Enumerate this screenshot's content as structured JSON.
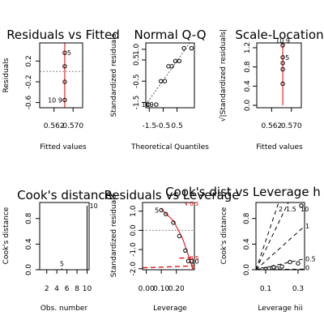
{
  "chart_data": [
    {
      "id": "p1",
      "type": "scatter",
      "title": "Residuals vs Fitted",
      "xlabel": "Fitted values",
      "ylabel": "Residuals",
      "xlim": [
        0.556,
        0.574
      ],
      "ylim": [
        -0.7,
        0.55
      ],
      "xticks": [
        0.562,
        0.57
      ],
      "xticklabels": [
        "0.562",
        "0.570"
      ],
      "yticks": [
        -0.6,
        -0.2,
        0.2
      ],
      "yticklabels": [
        "-0.6",
        "-0.2",
        "0.2"
      ],
      "points": [
        {
          "x": 0.5665,
          "y": 0.36
        },
        {
          "x": 0.5665,
          "y": 0.1
        },
        {
          "x": 0.5665,
          "y": -0.2
        },
        {
          "x": 0.5665,
          "y": -0.55
        }
      ],
      "smooth": [
        {
          "x": 0.5665,
          "y": 0.55
        },
        {
          "x": 0.5665,
          "y": -0.7
        }
      ],
      "reference_y": 0,
      "annotations": [
        {
          "x": 0.5665,
          "y": 0.36,
          "text": "5",
          "pos": "right"
        },
        {
          "x": 0.5665,
          "y": -0.55,
          "text": "10 9",
          "pos": "left"
        }
      ]
    },
    {
      "id": "p2",
      "type": "scatter",
      "title": "Normal Q-Q",
      "xlabel": "Theoretical Quantiles",
      "ylabel": "Standardized residuals",
      "xlim": [
        -1.75,
        1.75
      ],
      "ylim": [
        -1.75,
        1.3
      ],
      "xticks": [
        -1.5,
        -0.5,
        0.5
      ],
      "xticklabels": [
        "-1.5",
        "-0.5",
        "0.5"
      ],
      "yticks": [
        -1.5,
        -0.5,
        0.5,
        1.0
      ],
      "yticklabels": [
        "-1.5",
        "-0.5",
        "0.5",
        "1.0"
      ],
      "points": [
        {
          "x": -1.54,
          "y": -1.6
        },
        {
          "x": -1.0,
          "y": -1.6
        },
        {
          "x": -0.66,
          "y": -0.5
        },
        {
          "x": -0.38,
          "y": -0.5
        },
        {
          "x": -0.12,
          "y": 0.2
        },
        {
          "x": 0.12,
          "y": 0.2
        },
        {
          "x": 0.38,
          "y": 0.45
        },
        {
          "x": 0.66,
          "y": 0.45
        },
        {
          "x": 1.0,
          "y": 1.05
        },
        {
          "x": 1.54,
          "y": 1.05
        }
      ],
      "qqline": [
        {
          "x": -1.75,
          "y": -1.6
        },
        {
          "x": 1.75,
          "y": 1.6
        }
      ],
      "annotations": [
        {
          "x": -1.0,
          "y": -1.6,
          "text": "109",
          "pos": "left"
        }
      ]
    },
    {
      "id": "p3",
      "type": "scatter",
      "title": "Scale-Location",
      "xlabel": "Fitted values",
      "ylabel": "√|Standardized residuals|",
      "xlim": [
        0.556,
        0.574
      ],
      "ylim": [
        -0.05,
        1.3
      ],
      "xticks": [
        0.562,
        0.57
      ],
      "xticklabels": [
        "0.562",
        "0.570"
      ],
      "yticks": [
        0.0,
        0.4,
        0.8,
        1.2
      ],
      "yticklabels": [
        "0.0",
        "0.4",
        "0.8",
        "1.2"
      ],
      "points": [
        {
          "x": 0.5665,
          "y": 1.25
        },
        {
          "x": 0.5665,
          "y": 1.0
        },
        {
          "x": 0.5665,
          "y": 0.88
        },
        {
          "x": 0.5665,
          "y": 0.75
        },
        {
          "x": 0.5665,
          "y": 0.45
        }
      ],
      "smooth": [
        {
          "x": 0.5665,
          "y": 1.3
        },
        {
          "x": 0.5665,
          "y": 0.0
        }
      ],
      "annotations": [
        {
          "x": 0.5665,
          "y": 1.25,
          "text": "10 9",
          "pos": "top"
        },
        {
          "x": 0.5665,
          "y": 1.0,
          "text": "5",
          "pos": "right"
        }
      ]
    },
    {
      "id": "p4",
      "type": "bar",
      "title": "Cook's distance",
      "xlabel": "Obs. number",
      "ylabel": "Cook's distance",
      "xlim": [
        0.6,
        10.4
      ],
      "ylim": [
        0,
        1.05
      ],
      "xticks": [
        2,
        4,
        6,
        8,
        10
      ],
      "xticklabels": [
        "2",
        "4",
        "6",
        "8",
        "10"
      ],
      "yticks": [
        0.0,
        0.4,
        0.8
      ],
      "yticklabels": [
        "0.0",
        "0.4",
        "0.8"
      ],
      "categories": [
        1,
        2,
        3,
        4,
        5,
        6,
        7,
        8,
        9,
        10
      ],
      "values": [
        0.003,
        0.003,
        0.004,
        0.006,
        0.02,
        0.006,
        0.004,
        0.004,
        0.006,
        1.0
      ],
      "annotations": [
        {
          "x": 5,
          "y": 0.02,
          "text": "5",
          "pos": "top"
        },
        {
          "x": 10,
          "y": 1.0,
          "text": "10",
          "pos": "right"
        }
      ]
    },
    {
      "id": "p5",
      "type": "scatter",
      "title": "Residuals vs Leverage",
      "xlabel": "Leverage",
      "ylabel": "Standardized residuals",
      "xlim": [
        -0.025,
        0.32
      ],
      "ylim": [
        -2.05,
        1.45
      ],
      "xticks": [
        0.0,
        0.1,
        0.2
      ],
      "xticklabels": [
        "0.00",
        "0.10",
        "0.20"
      ],
      "yticks": [
        -2.0,
        -1.0,
        0.0,
        1.0
      ],
      "yticklabels": [
        "-2.0",
        "-1.0",
        "0.0",
        "1.0"
      ],
      "points": [
        {
          "x": 0.1,
          "y": 1.05
        },
        {
          "x": 0.13,
          "y": 0.85
        },
        {
          "x": 0.18,
          "y": 0.4
        },
        {
          "x": 0.22,
          "y": -0.3
        },
        {
          "x": 0.26,
          "y": -1.05
        },
        {
          "x": 0.28,
          "y": -1.6
        },
        {
          "x": 0.3,
          "y": -1.6
        }
      ],
      "smooth": [
        {
          "x": 0.1,
          "y": 1.1
        },
        {
          "x": 0.18,
          "y": 0.5
        },
        {
          "x": 0.24,
          "y": -0.4
        },
        {
          "x": 0.28,
          "y": -1.3
        },
        {
          "x": 0.31,
          "y": -2.05
        }
      ],
      "reference_y": 0,
      "cook_contours": [
        {
          "y": [
            [
              0.26,
              1.45
            ],
            [
              0.27,
              1.3
            ]
          ],
          "label": "0.5",
          "label_at": [
            0.31,
            1.4
          ]
        },
        {
          "y": [
            [
              0.22,
              -1.45
            ],
            [
              0.3,
              -1.42
            ]
          ],
          "label": "0.5",
          "label_at": [
            0.31,
            -1.42
          ]
        },
        {
          "y": [
            [
              -0.025,
              -1.95
            ],
            [
              0.31,
              -1.85
            ]
          ],
          "label": "1",
          "label_at": [
            0.32,
            -1.85
          ]
        }
      ],
      "annotations": [
        {
          "x": 0.1,
          "y": 1.05,
          "text": "5",
          "pos": "left"
        },
        {
          "x": 0.28,
          "y": -1.6,
          "text": "10",
          "pos": "right"
        }
      ]
    },
    {
      "id": "p6",
      "type": "scatter",
      "title": "Cook's dist vs Leverage  h",
      "xlabel": "Leverage  hii",
      "ylabel": "Cook's distance",
      "xlim": [
        0.04,
        0.34
      ],
      "ylim": [
        0,
        1.05
      ],
      "xticks": [
        0.1,
        0.3
      ],
      "xticklabels": [
        "0.1",
        "0.3"
      ],
      "yticks": [
        0.0,
        0.4,
        0.8
      ],
      "yticklabels": [
        "0.0",
        "0.4",
        "0.8"
      ],
      "points": [
        {
          "x": 0.08,
          "y": 0.005
        },
        {
          "x": 0.1,
          "y": 0.01
        },
        {
          "x": 0.12,
          "y": 0.02
        },
        {
          "x": 0.15,
          "y": 0.04
        },
        {
          "x": 0.17,
          "y": 0.02
        },
        {
          "x": 0.2,
          "y": 0.05
        },
        {
          "x": 0.25,
          "y": 0.12
        },
        {
          "x": 0.3,
          "y": 0.1
        },
        {
          "x": 0.32,
          "y": 1.0
        }
      ],
      "guides": [
        {
          "label": "2",
          "slope_end": [
            0.18,
            1.05
          ]
        },
        {
          "label": "1.5",
          "slope_end": [
            0.24,
            1.05
          ]
        },
        {
          "label": "1",
          "slope_end": [
            0.34,
            0.68
          ]
        },
        {
          "label": "0.5",
          "slope_end": [
            0.34,
            0.17
          ]
        },
        {
          "label": "0",
          "slope_end": [
            0.34,
            0.01
          ]
        }
      ],
      "guide_labels": [
        {
          "x": 0.18,
          "y": 0.95,
          "text": "2"
        },
        {
          "x": 0.225,
          "y": 0.95,
          "text": "1.5"
        },
        {
          "x": 0.345,
          "y": 0.68,
          "text": "1"
        },
        {
          "x": 0.345,
          "y": 0.17,
          "text": "0.5"
        },
        {
          "x": 0.345,
          "y": 0.03,
          "text": "0"
        }
      ],
      "annotations": [
        {
          "x": 0.3,
          "y": 0.95,
          "text": "10",
          "pos": "right"
        }
      ]
    }
  ]
}
